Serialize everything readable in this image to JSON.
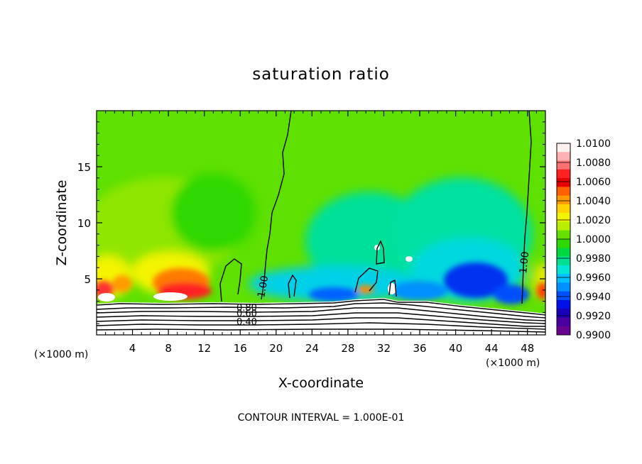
{
  "chart_data": {
    "type": "heatmap",
    "title": "saturation ratio",
    "xlabel": "X-coordinate",
    "ylabel": "Z-coordinate",
    "x_unit_left": "(×1000 m)",
    "x_unit_right": "(×1000 m)",
    "xlim": [
      0,
      50
    ],
    "ylim": [
      0,
      20
    ],
    "xticks": [
      4,
      8,
      12,
      16,
      20,
      24,
      28,
      32,
      36,
      40,
      44,
      48
    ],
    "yticks": [
      5,
      10,
      15
    ],
    "colorbar": {
      "labels": [
        "1.0100",
        "1.0080",
        "1.0060",
        "1.0040",
        "1.0020",
        "1.0000",
        "0.9980",
        "0.9960",
        "0.9940",
        "0.9920",
        "0.9900"
      ],
      "colors": [
        "#fff0f0",
        "#ffb0b0",
        "#ff7070",
        "#ff2020",
        "#e80000",
        "#ff6000",
        "#ff9a00",
        "#ffd200",
        "#f4f400",
        "#b8ee00",
        "#66e000",
        "#2ed800",
        "#00d840",
        "#00e090",
        "#00e6d4",
        "#00c0ff",
        "#0090ff",
        "#0050ff",
        "#0010e8",
        "#1800b8",
        "#4a00a0",
        "#6a0090"
      ]
    },
    "contour_labels": [
      "0.80",
      "0.60",
      "0.40",
      "1.00",
      "1.00"
    ],
    "contour_values": [
      1.0,
      0.8,
      0.6,
      0.4
    ],
    "footer": "CONTOUR INTERVAL = 1.000E-01"
  }
}
